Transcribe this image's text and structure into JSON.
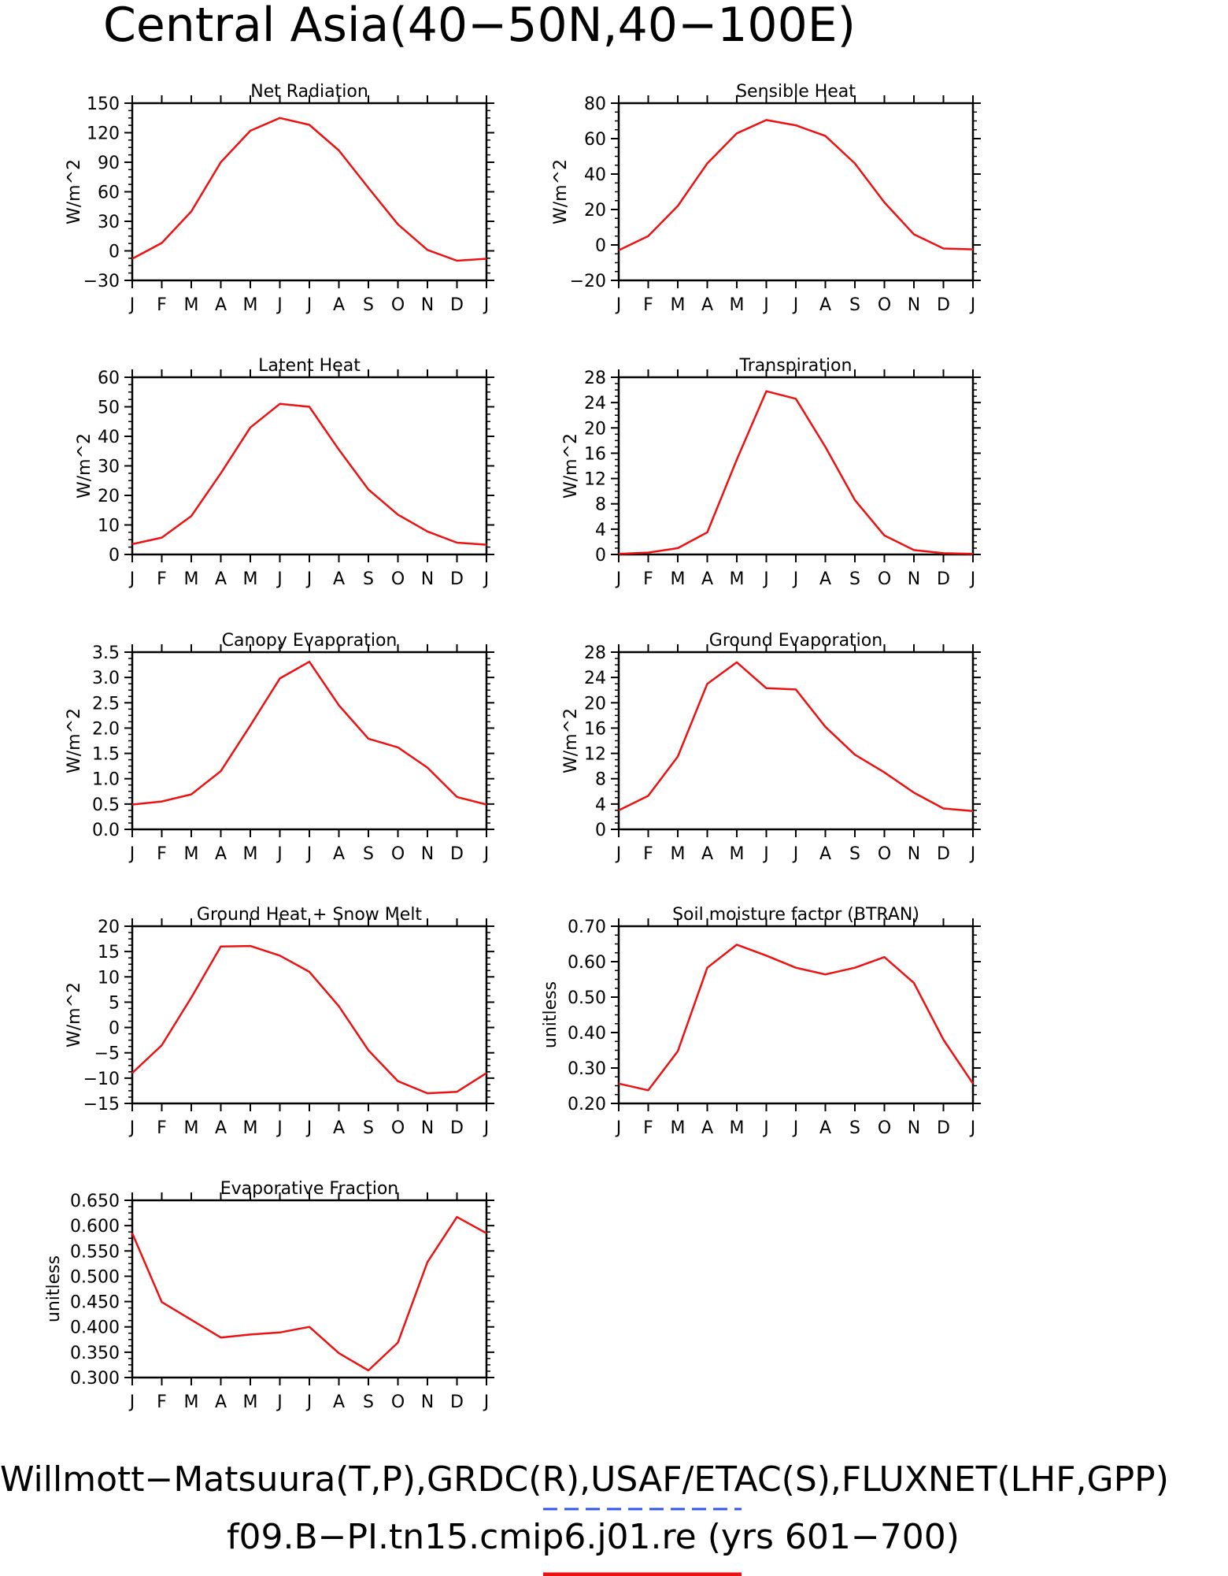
{
  "title": "Central Asia(40−50N,40−100E)",
  "footer": {
    "line1": "Willmott−Matsuura(T,P),GRDC(R),USAF/ETAC(S),FLUXNET(LHF,GPP)",
    "line2": "f09.B−PI.tn15.cmip6.j01.re (yrs 601−700)",
    "line1_underline_color": "#3355ee",
    "line2_underline_color": "#ee1111"
  },
  "colors": {
    "series": "#ee1111",
    "axes": "#000000"
  },
  "months": [
    "J",
    "F",
    "M",
    "A",
    "M",
    "J",
    "J",
    "A",
    "S",
    "O",
    "N",
    "D",
    "J"
  ],
  "chart_data": [
    {
      "type": "line",
      "title": "Net Radiation",
      "ylabel": "W/m^2",
      "yticks": [
        "150",
        "120",
        "90",
        "60",
        "30",
        "0",
        "−30"
      ],
      "ylim": [
        -30,
        150
      ],
      "x": [
        "J",
        "F",
        "M",
        "A",
        "M",
        "J",
        "J",
        "A",
        "S",
        "O",
        "N",
        "D",
        "J"
      ],
      "values": [
        -8,
        8,
        40,
        90,
        122,
        135,
        128,
        102,
        64,
        27,
        1,
        -10,
        -8
      ]
    },
    {
      "type": "line",
      "title": "Sensible Heat",
      "ylabel": "W/m^2",
      "yticks": [
        "80",
        "60",
        "40",
        "20",
        "0",
        "−20"
      ],
      "ylim": [
        -20,
        80
      ],
      "x": [
        "J",
        "F",
        "M",
        "A",
        "M",
        "J",
        "J",
        "A",
        "S",
        "O",
        "N",
        "D",
        "J"
      ],
      "values": [
        -3,
        5,
        22,
        46,
        63,
        70.5,
        67.5,
        61.5,
        46,
        24,
        6,
        -2,
        -2.5
      ]
    },
    {
      "type": "line",
      "title": "Latent Heat",
      "ylabel": "W/m^2",
      "yticks": [
        "60",
        "50",
        "40",
        "30",
        "20",
        "10",
        "0"
      ],
      "ylim": [
        0,
        60
      ],
      "x": [
        "J",
        "F",
        "M",
        "A",
        "M",
        "J",
        "J",
        "A",
        "S",
        "O",
        "N",
        "D",
        "J"
      ],
      "values": [
        3.5,
        5.7,
        13,
        27.5,
        43,
        51,
        50,
        35.5,
        22,
        13.5,
        7.8,
        4,
        3.3
      ]
    },
    {
      "type": "line",
      "title": "Transpiration",
      "ylabel": "W/m^2",
      "yticks": [
        "28",
        "24",
        "20",
        "16",
        "12",
        "8",
        "4",
        "0"
      ],
      "ylim": [
        0,
        28
      ],
      "x": [
        "J",
        "F",
        "M",
        "A",
        "M",
        "J",
        "J",
        "A",
        "S",
        "O",
        "N",
        "D",
        "J"
      ],
      "values": [
        0.1,
        0.3,
        1,
        3.5,
        15,
        25.8,
        24.6,
        17,
        8.6,
        3,
        0.7,
        0.2,
        0.1
      ]
    },
    {
      "type": "line",
      "title": "Canopy Evaporation",
      "ylabel": "W/m^2",
      "yticks": [
        "3.5",
        "3.0",
        "2.5",
        "2.0",
        "1.5",
        "1.0",
        "0.5",
        "0.0"
      ],
      "ylim": [
        0,
        3.5
      ],
      "x": [
        "J",
        "F",
        "M",
        "A",
        "M",
        "J",
        "J",
        "A",
        "S",
        "O",
        "N",
        "D",
        "J"
      ],
      "values": [
        0.49,
        0.55,
        0.69,
        1.15,
        2.05,
        2.98,
        3.31,
        2.45,
        1.79,
        1.62,
        1.22,
        0.64,
        0.49
      ]
    },
    {
      "type": "line",
      "title": "Ground Evaporation",
      "ylabel": "W/m^2",
      "yticks": [
        "28",
        "24",
        "20",
        "16",
        "12",
        "8",
        "4",
        "0"
      ],
      "ylim": [
        0,
        28
      ],
      "x": [
        "J",
        "F",
        "M",
        "A",
        "M",
        "J",
        "J",
        "A",
        "S",
        "O",
        "N",
        "D",
        "J"
      ],
      "values": [
        3,
        5.3,
        11.5,
        23,
        26.4,
        22.3,
        22.1,
        16.2,
        11.8,
        9,
        5.8,
        3.3,
        2.9
      ]
    },
    {
      "type": "line",
      "title": "Ground Heat + Snow Melt",
      "ylabel": "W/m^2",
      "yticks": [
        "20",
        "15",
        "10",
        "5",
        "0",
        "−5",
        "−10",
        "−15"
      ],
      "ylim": [
        -15,
        20
      ],
      "x": [
        "J",
        "F",
        "M",
        "A",
        "M",
        "J",
        "J",
        "A",
        "S",
        "O",
        "N",
        "D",
        "J"
      ],
      "values": [
        -9,
        -3.5,
        5.9,
        16,
        16.1,
        14.2,
        11,
        4.2,
        -4.5,
        -10.6,
        -13,
        -12.7,
        -9
      ]
    },
    {
      "type": "line",
      "title": "Soil moisture factor (BTRAN)",
      "ylabel": "unitless",
      "yticks": [
        "0.70",
        "0.60",
        "0.50",
        "0.40",
        "0.30",
        "0.20"
      ],
      "ylim": [
        0.2,
        0.7
      ],
      "x": [
        "J",
        "F",
        "M",
        "A",
        "M",
        "J",
        "J",
        "A",
        "S",
        "O",
        "N",
        "D",
        "J"
      ],
      "values": [
        0.256,
        0.237,
        0.347,
        0.583,
        0.648,
        0.617,
        0.583,
        0.564,
        0.583,
        0.613,
        0.54,
        0.38,
        0.256
      ]
    },
    {
      "type": "line",
      "title": "Evaporative Fraction",
      "ylabel": "unitless",
      "yticks": [
        "0.650",
        "0.600",
        "0.550",
        "0.500",
        "0.450",
        "0.400",
        "0.350",
        "0.300"
      ],
      "ylim": [
        0.3,
        0.65
      ],
      "x": [
        "J",
        "F",
        "M",
        "A",
        "M",
        "J",
        "J",
        "A",
        "S",
        "O",
        "N",
        "D",
        "J"
      ],
      "values": [
        0.585,
        0.449,
        0.414,
        0.379,
        0.385,
        0.389,
        0.4,
        0.348,
        0.314,
        0.369,
        0.528,
        0.617,
        0.585
      ]
    }
  ]
}
